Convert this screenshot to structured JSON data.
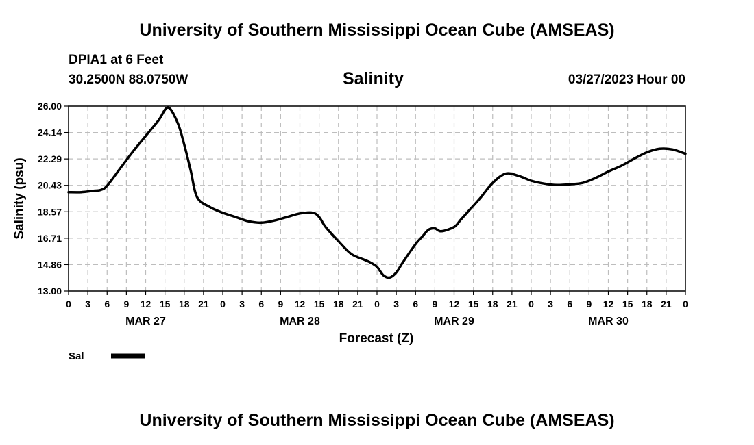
{
  "header": {
    "title": "University of Southern Mississippi Ocean Cube (AMSEAS)",
    "station": "DPIA1 at 6 Feet",
    "coords": "30.2500N  88.0750W",
    "chart_title": "Salinity",
    "date": "03/27/2023 Hour 00"
  },
  "footer": {
    "title": "University of Southern Mississippi Ocean Cube (AMSEAS)"
  },
  "legend": {
    "label": "Sal"
  },
  "chart_data": {
    "type": "line",
    "title": "Salinity",
    "xlabel": "Forecast (Z)",
    "ylabel": "Salinity (psu)",
    "ylim": [
      13.0,
      26.0
    ],
    "xlim_hours": [
      0,
      96
    ],
    "yticks": [
      "13.00",
      "14.86",
      "16.71",
      "18.57",
      "20.43",
      "22.29",
      "24.14",
      "26.00"
    ],
    "xtick_labels": [
      "0",
      "3",
      "6",
      "9",
      "12",
      "15",
      "18",
      "21",
      "0",
      "3",
      "6",
      "9",
      "12",
      "15",
      "18",
      "21",
      "0",
      "3",
      "6",
      "9",
      "12",
      "15",
      "18",
      "21",
      "0",
      "3",
      "6",
      "9",
      "12",
      "15",
      "18",
      "21",
      "0"
    ],
    "day_labels": [
      "MAR 27",
      "MAR 28",
      "MAR 29",
      "MAR 30"
    ],
    "grid": true,
    "series": [
      {
        "name": "Sal",
        "x": [
          0,
          2,
          4,
          5,
          6,
          8,
          10,
          12,
          14,
          15.5,
          17,
          18,
          19,
          20,
          22,
          24,
          26,
          28,
          30,
          32,
          34,
          36,
          38,
          39,
          40,
          42,
          44,
          46,
          47,
          48,
          49,
          50,
          51,
          52,
          54,
          55,
          56,
          57,
          58,
          60,
          61,
          62,
          64,
          66,
          68,
          70,
          72,
          74,
          76,
          78,
          80,
          82,
          84,
          86,
          88,
          90,
          92,
          94,
          96
        ],
        "values": [
          19.95,
          19.95,
          20.05,
          20.1,
          20.4,
          21.6,
          22.8,
          23.9,
          25.0,
          25.9,
          24.8,
          23.3,
          21.5,
          19.6,
          18.9,
          18.5,
          18.2,
          17.9,
          17.8,
          17.95,
          18.2,
          18.45,
          18.5,
          18.2,
          17.5,
          16.5,
          15.6,
          15.2,
          15.0,
          14.7,
          14.1,
          13.95,
          14.3,
          15.0,
          16.3,
          16.8,
          17.3,
          17.4,
          17.2,
          17.5,
          18.0,
          18.5,
          19.5,
          20.6,
          21.25,
          21.1,
          20.75,
          20.55,
          20.45,
          20.5,
          20.6,
          20.95,
          21.4,
          21.8,
          22.3,
          22.75,
          23.0,
          22.95,
          22.65
        ]
      }
    ]
  }
}
